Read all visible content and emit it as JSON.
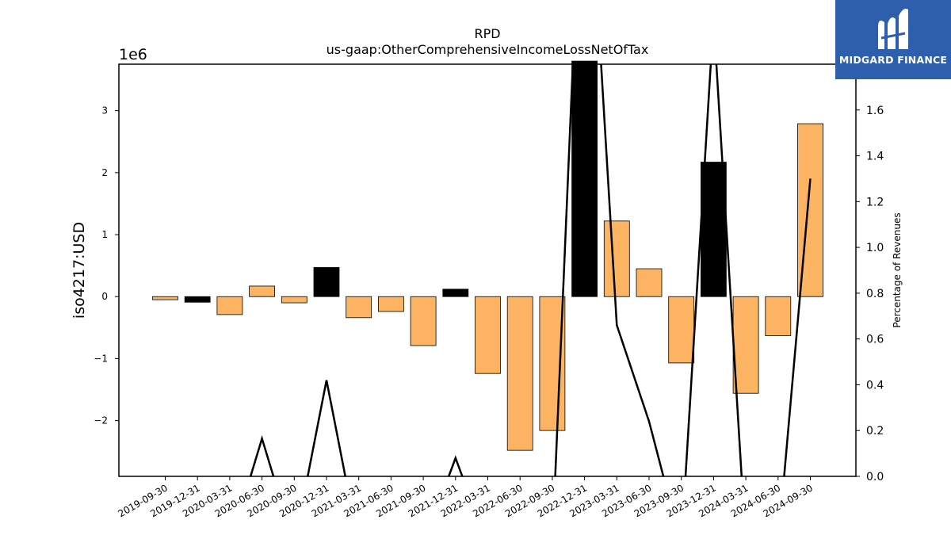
{
  "chart_data": {
    "type": "bar",
    "title": "RPD",
    "subtitle": "us-gaap:OtherComprehensiveIncomeLossNetOfTax",
    "ylabel": "iso4217:USD",
    "y_offset_label": "1e6",
    "y2label": "Percentage of Revenues",
    "categories": [
      "2019-09-30",
      "2019-12-31",
      "2020-03-31",
      "2020-06-30",
      "2020-09-30",
      "2020-12-31",
      "2021-03-31",
      "2021-06-30",
      "2021-09-30",
      "2021-12-31",
      "2022-03-31",
      "2022-06-30",
      "2022-09-30",
      "2022-12-31",
      "2023-03-31",
      "2023-06-30",
      "2023-09-30",
      "2023-12-31",
      "2024-03-31",
      "2024-06-30",
      "2024-09-30"
    ],
    "values": [
      -0.05,
      -0.09,
      -0.29,
      0.17,
      -0.1,
      0.47,
      -0.34,
      -0.24,
      -0.79,
      0.12,
      -1.24,
      -2.48,
      -2.16,
      3.8,
      1.22,
      0.45,
      -1.07,
      2.17,
      -1.56,
      -0.63,
      2.79
    ],
    "bar_colors": [
      "#fdb462",
      "#000000",
      "#fdb462",
      "#fdb462",
      "#fdb462",
      "#000000",
      "#fdb462",
      "#fdb462",
      "#fdb462",
      "#000000",
      "#fdb462",
      "#fdb462",
      "#fdb462",
      "#000000",
      "#fdb462",
      "#fdb462",
      "#fdb462",
      "#000000",
      "#fdb462",
      "#fdb462",
      "#fdb462"
    ],
    "line_values": [
      -0.3,
      -0.3,
      -0.3,
      0.165,
      -0.3,
      0.42,
      -0.3,
      -0.3,
      -0.3,
      0.08,
      -0.3,
      -0.3,
      -0.3,
      3.0,
      0.66,
      0.24,
      -0.3,
      2.0,
      -0.3,
      -0.3,
      1.3
    ],
    "line_color": "#000000",
    "ylim": [
      -2.9,
      3.75
    ],
    "y2lim": [
      0.0,
      1.8
    ],
    "yticks": [
      -2,
      -1,
      0,
      1,
      2,
      3
    ],
    "ytick_labels": [
      "−2",
      "−1",
      "0",
      "1",
      "2",
      "3"
    ],
    "y2ticks": [
      0.0,
      0.2,
      0.4,
      0.6,
      0.8,
      1.0,
      1.2,
      1.4,
      1.6
    ],
    "y2tick_labels": [
      "0.0",
      "0.2",
      "0.4",
      "0.6",
      "0.8",
      "1.0",
      "1.2",
      "1.4",
      "1.6"
    ],
    "grid": false
  },
  "logo": {
    "text": "MIDGARD FINANCE",
    "color": "#2d5fad"
  }
}
